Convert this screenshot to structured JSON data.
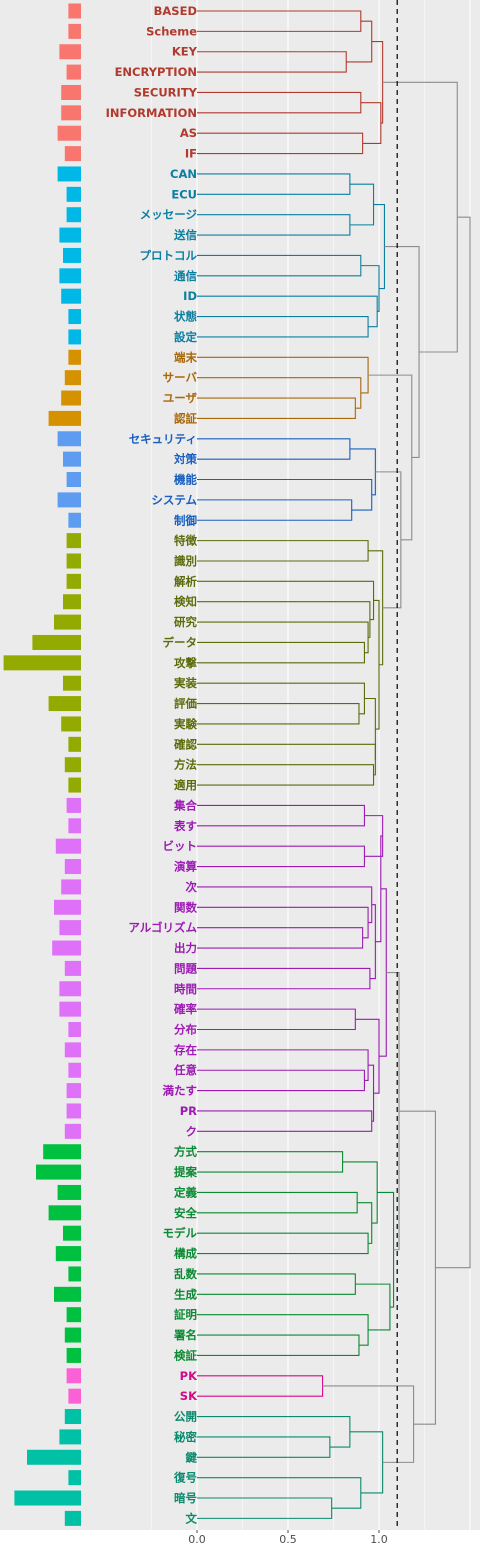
{
  "chart_data": {
    "type": "dendrogram",
    "xlim": [
      -0.45,
      1.6
    ],
    "x_ticks": [
      "0.0",
      "0.5",
      "1.0"
    ],
    "x_tick_values": [
      0,
      0.5,
      1.0
    ],
    "cut_height": 1.1,
    "grid": true,
    "groups": [
      {
        "id": "g1",
        "color": "#b03a2e",
        "bar_color": "#f8766d",
        "labels": [
          "BASED",
          "Scheme",
          "KEY",
          "ENCRYPTION",
          "SECURITY",
          "INFORMATION",
          "AS",
          "IF"
        ],
        "bars": [
          0.07,
          0.07,
          0.12,
          0.08,
          0.11,
          0.11,
          0.13,
          0.09
        ]
      },
      {
        "id": "g2",
        "color": "#0b7fa0",
        "bar_color": "#00b8e6",
        "labels": [
          "CAN",
          "ECU",
          "メッセージ",
          "送信",
          "プロトコル",
          "通信",
          "ID",
          "状態",
          "設定"
        ],
        "bars": [
          0.13,
          0.08,
          0.08,
          0.12,
          0.1,
          0.12,
          0.11,
          0.07,
          0.07
        ]
      },
      {
        "id": "g3",
        "color": "#a8680a",
        "bar_color": "#d69100",
        "labels": [
          "端末",
          "サーバ",
          "ユーザ",
          "認証"
        ],
        "bars": [
          0.07,
          0.09,
          0.11,
          0.18
        ]
      },
      {
        "id": "g4",
        "color": "#1a5fbf",
        "bar_color": "#5e9cf2",
        "labels": [
          "セキュリティ",
          "対策",
          "機能",
          "システム",
          "制御"
        ],
        "bars": [
          0.13,
          0.1,
          0.08,
          0.13,
          0.07
        ]
      },
      {
        "id": "g5",
        "color": "#5c6b0a",
        "bar_color": "#93aa00",
        "labels": [
          "特徴",
          "識別",
          "解析",
          "検知",
          "研究",
          "データ",
          "攻撃",
          "実装",
          "評価",
          "実験",
          "確認",
          "方法",
          "適用"
        ],
        "bars": [
          0.08,
          0.08,
          0.08,
          0.1,
          0.15,
          0.27,
          0.43,
          0.1,
          0.18,
          0.11,
          0.07,
          0.09,
          0.07
        ]
      },
      {
        "id": "g6",
        "color": "#9d1bb4",
        "bar_color": "#df70f8",
        "labels": [
          "集合",
          "表す",
          "ビット",
          "演算",
          "次",
          "関数",
          "アルゴリズム",
          "出力",
          "問題",
          "時間",
          "確率",
          "分布",
          "存在",
          "任意",
          "満たす",
          "PR",
          "ク"
        ],
        "bars": [
          0.08,
          0.07,
          0.14,
          0.09,
          0.11,
          0.15,
          0.12,
          0.16,
          0.09,
          0.12,
          0.12,
          0.07,
          0.09,
          0.07,
          0.08,
          0.08,
          0.09
        ]
      },
      {
        "id": "g7",
        "color": "#0a8a32",
        "bar_color": "#00c040",
        "labels": [
          "方式",
          "提案",
          "定義",
          "安全",
          "モデル",
          "構成",
          "乱数",
          "生成",
          "証明",
          "署名",
          "検証"
        ],
        "bars": [
          0.21,
          0.25,
          0.13,
          0.18,
          0.1,
          0.14,
          0.07,
          0.15,
          0.08,
          0.09,
          0.08
        ]
      },
      {
        "id": "g8",
        "color": "#d10a8a",
        "bar_color": "#fb61d7",
        "labels": [
          "PK",
          "SK"
        ],
        "bars": [
          0.08,
          0.07
        ]
      },
      {
        "id": "g9",
        "color": "#0a8a6e",
        "bar_color": "#00c0a5",
        "labels": [
          "公開",
          "秘密",
          "鍵",
          "復号",
          "暗号",
          "文"
        ],
        "bars": [
          0.09,
          0.12,
          0.3,
          0.07,
          0.37,
          0.09
        ]
      }
    ],
    "merges": [
      {
        "id": "m1",
        "children": [
          "BASED",
          "Scheme"
        ],
        "height": 0.9
      },
      {
        "id": "m2",
        "children": [
          "KEY",
          "ENCRYPTION"
        ],
        "height": 0.82
      },
      {
        "id": "m3",
        "children": [
          "m1",
          "m2"
        ],
        "height": 0.96
      },
      {
        "id": "m4",
        "children": [
          "SECURITY",
          "INFORMATION"
        ],
        "height": 0.9
      },
      {
        "id": "m5",
        "children": [
          "AS",
          "IF"
        ],
        "height": 0.91
      },
      {
        "id": "m6",
        "children": [
          "m4",
          "m5"
        ],
        "height": 1.01
      },
      {
        "id": "m7",
        "children": [
          "m3",
          "m6"
        ],
        "height": 1.02
      },
      {
        "id": "m8",
        "children": [
          "CAN",
          "ECU"
        ],
        "height": 0.84
      },
      {
        "id": "m9",
        "children": [
          "メッセージ",
          "送信"
        ],
        "height": 0.84
      },
      {
        "id": "m10",
        "children": [
          "m8",
          "m9"
        ],
        "height": 0.97
      },
      {
        "id": "m11",
        "children": [
          "プロトコル",
          "通信"
        ],
        "height": 0.9
      },
      {
        "id": "m12",
        "children": [
          "状態",
          "設定"
        ],
        "height": 0.94
      },
      {
        "id": "m13",
        "children": [
          "ID",
          "m12"
        ],
        "height": 0.99
      },
      {
        "id": "m14",
        "children": [
          "m11",
          "m13"
        ],
        "height": 1.0
      },
      {
        "id": "m15",
        "children": [
          "m10",
          "m14"
        ],
        "height": 1.03
      },
      {
        "id": "m16",
        "children": [
          "ユーザ",
          "認証"
        ],
        "height": 0.87
      },
      {
        "id": "m17",
        "children": [
          "サーバ",
          "m16"
        ],
        "height": 0.9
      },
      {
        "id": "m18",
        "children": [
          "端末",
          "m17"
        ],
        "height": 0.94
      },
      {
        "id": "m19",
        "children": [
          "セキュリティ",
          "対策"
        ],
        "height": 0.84
      },
      {
        "id": "m20",
        "children": [
          "システム",
          "制御"
        ],
        "height": 0.85
      },
      {
        "id": "m21",
        "children": [
          "機能",
          "m20"
        ],
        "height": 0.96
      },
      {
        "id": "m22",
        "children": [
          "m19",
          "m21"
        ],
        "height": 0.98
      },
      {
        "id": "m23",
        "children": [
          "特徴",
          "識別"
        ],
        "height": 0.94
      },
      {
        "id": "m24",
        "children": [
          "データ",
          "攻撃"
        ],
        "height": 0.92
      },
      {
        "id": "m25",
        "children": [
          "研究",
          "m24"
        ],
        "height": 0.94
      },
      {
        "id": "m26",
        "children": [
          "検知",
          "m25"
        ],
        "height": 0.95
      },
      {
        "id": "m27",
        "children": [
          "解析",
          "m26"
        ],
        "height": 0.97
      },
      {
        "id": "m28",
        "children": [
          "評価",
          "実験"
        ],
        "height": 0.89
      },
      {
        "id": "m29",
        "children": [
          "実装",
          "m28"
        ],
        "height": 0.92
      },
      {
        "id": "m30",
        "children": [
          "方法",
          "適用"
        ],
        "height": 0.97
      },
      {
        "id": "m31",
        "children": [
          "確認",
          "m30"
        ],
        "height": 0.98
      },
      {
        "id": "m32",
        "children": [
          "m29",
          "m31"
        ],
        "height": 0.98
      },
      {
        "id": "m33",
        "children": [
          "m27",
          "m32"
        ],
        "height": 1.0
      },
      {
        "id": "m34",
        "children": [
          "m23",
          "m33"
        ],
        "height": 1.02
      },
      {
        "id": "m35",
        "children": [
          "m22",
          "m34"
        ],
        "height": 1.12
      },
      {
        "id": "m36",
        "children": [
          "m18",
          "m35"
        ],
        "height": 1.18
      },
      {
        "id": "m37",
        "children": [
          "m15",
          "m36"
        ],
        "height": 1.22
      },
      {
        "id": "m38",
        "children": [
          "m7",
          "m37"
        ],
        "height": 1.43
      },
      {
        "id": "m39",
        "children": [
          "集合",
          "表す"
        ],
        "height": 0.92
      },
      {
        "id": "m40",
        "children": [
          "ビット",
          "演算"
        ],
        "height": 0.92
      },
      {
        "id": "m41",
        "children": [
          "m39",
          "m40"
        ],
        "height": 1.02
      },
      {
        "id": "m42",
        "children": [
          "アルゴリズム",
          "出力"
        ],
        "height": 0.91
      },
      {
        "id": "m43",
        "children": [
          "関数",
          "m42"
        ],
        "height": 0.94
      },
      {
        "id": "m44",
        "children": [
          "次",
          "m43"
        ],
        "height": 0.96
      },
      {
        "id": "m45",
        "children": [
          "問題",
          "時間"
        ],
        "height": 0.95
      },
      {
        "id": "m46",
        "children": [
          "m44",
          "m45"
        ],
        "height": 0.98
      },
      {
        "id": "m47",
        "children": [
          "m41",
          "m46"
        ],
        "height": 1.01
      },
      {
        "id": "m48",
        "children": [
          "確率",
          "分布"
        ],
        "height": 0.87
      },
      {
        "id": "m49",
        "children": [
          "任意",
          "満たす"
        ],
        "height": 0.92
      },
      {
        "id": "m50",
        "children": [
          "存在",
          "m49"
        ],
        "height": 0.94
      },
      {
        "id": "m51",
        "children": [
          "PR",
          "ク"
        ],
        "height": 0.96
      },
      {
        "id": "m52",
        "children": [
          "m50",
          "m51"
        ],
        "height": 0.97
      },
      {
        "id": "m53",
        "children": [
          "m48",
          "m52"
        ],
        "height": 1.0
      },
      {
        "id": "m54",
        "children": [
          "m47",
          "m53"
        ],
        "height": 1.04
      },
      {
        "id": "m55",
        "children": [
          "方式",
          "提案"
        ],
        "height": 0.8
      },
      {
        "id": "m56",
        "children": [
          "定義",
          "安全"
        ],
        "height": 0.88
      },
      {
        "id": "m57",
        "children": [
          "モデル",
          "構成"
        ],
        "height": 0.94
      },
      {
        "id": "m58",
        "children": [
          "m56",
          "m57"
        ],
        "height": 0.96
      },
      {
        "id": "m59",
        "children": [
          "m55",
          "m58"
        ],
        "height": 0.99
      },
      {
        "id": "m60",
        "children": [
          "乱数",
          "生成"
        ],
        "height": 0.87
      },
      {
        "id": "m61",
        "children": [
          "署名",
          "検証"
        ],
        "height": 0.89
      },
      {
        "id": "m62",
        "children": [
          "証明",
          "m61"
        ],
        "height": 0.94
      },
      {
        "id": "m63",
        "children": [
          "m60",
          "m62"
        ],
        "height": 1.06
      },
      {
        "id": "m64",
        "children": [
          "m59",
          "m63"
        ],
        "height": 1.08
      },
      {
        "id": "m65",
        "children": [
          "m54",
          "m64"
        ],
        "height": 1.11
      },
      {
        "id": "m66",
        "children": [
          "PK",
          "SK"
        ],
        "height": 0.69
      },
      {
        "id": "m67",
        "children": [
          "秘密",
          "鍵"
        ],
        "height": 0.73
      },
      {
        "id": "m68",
        "children": [
          "公開",
          "m67"
        ],
        "height": 0.84
      },
      {
        "id": "m69",
        "children": [
          "暗号",
          "文"
        ],
        "height": 0.74
      },
      {
        "id": "m70",
        "children": [
          "復号",
          "m69"
        ],
        "height": 0.9
      },
      {
        "id": "m71",
        "children": [
          "m68",
          "m70"
        ],
        "height": 1.02
      },
      {
        "id": "m72",
        "children": [
          "m66",
          "m71"
        ],
        "height": 1.19
      },
      {
        "id": "m73",
        "children": [
          "m65",
          "m72"
        ],
        "height": 1.31
      },
      {
        "id": "m74",
        "children": [
          "m38",
          "m73"
        ],
        "height": 1.5
      }
    ]
  }
}
